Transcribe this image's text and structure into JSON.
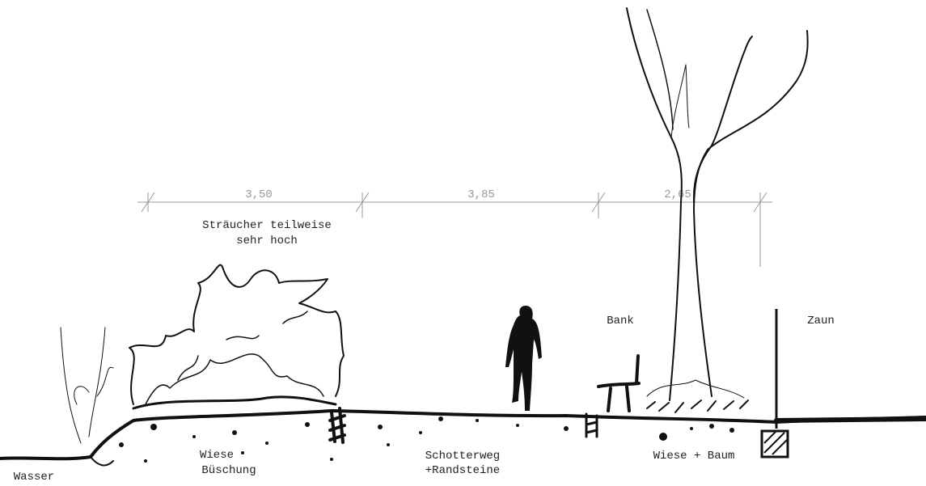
{
  "dimensions": [
    "3,50",
    "3,85",
    "2,65"
  ],
  "labels": {
    "shrubs": [
      "Sträucher teilweise",
      "sehr hoch"
    ],
    "bench": "Bank",
    "fence": "Zaun",
    "meadow_slope": [
      "Wiese",
      "Büschung"
    ],
    "path": [
      "Schotterweg",
      "+Randsteine"
    ],
    "meadow_tree": "Wiese + Baum",
    "water": "Wasser"
  }
}
